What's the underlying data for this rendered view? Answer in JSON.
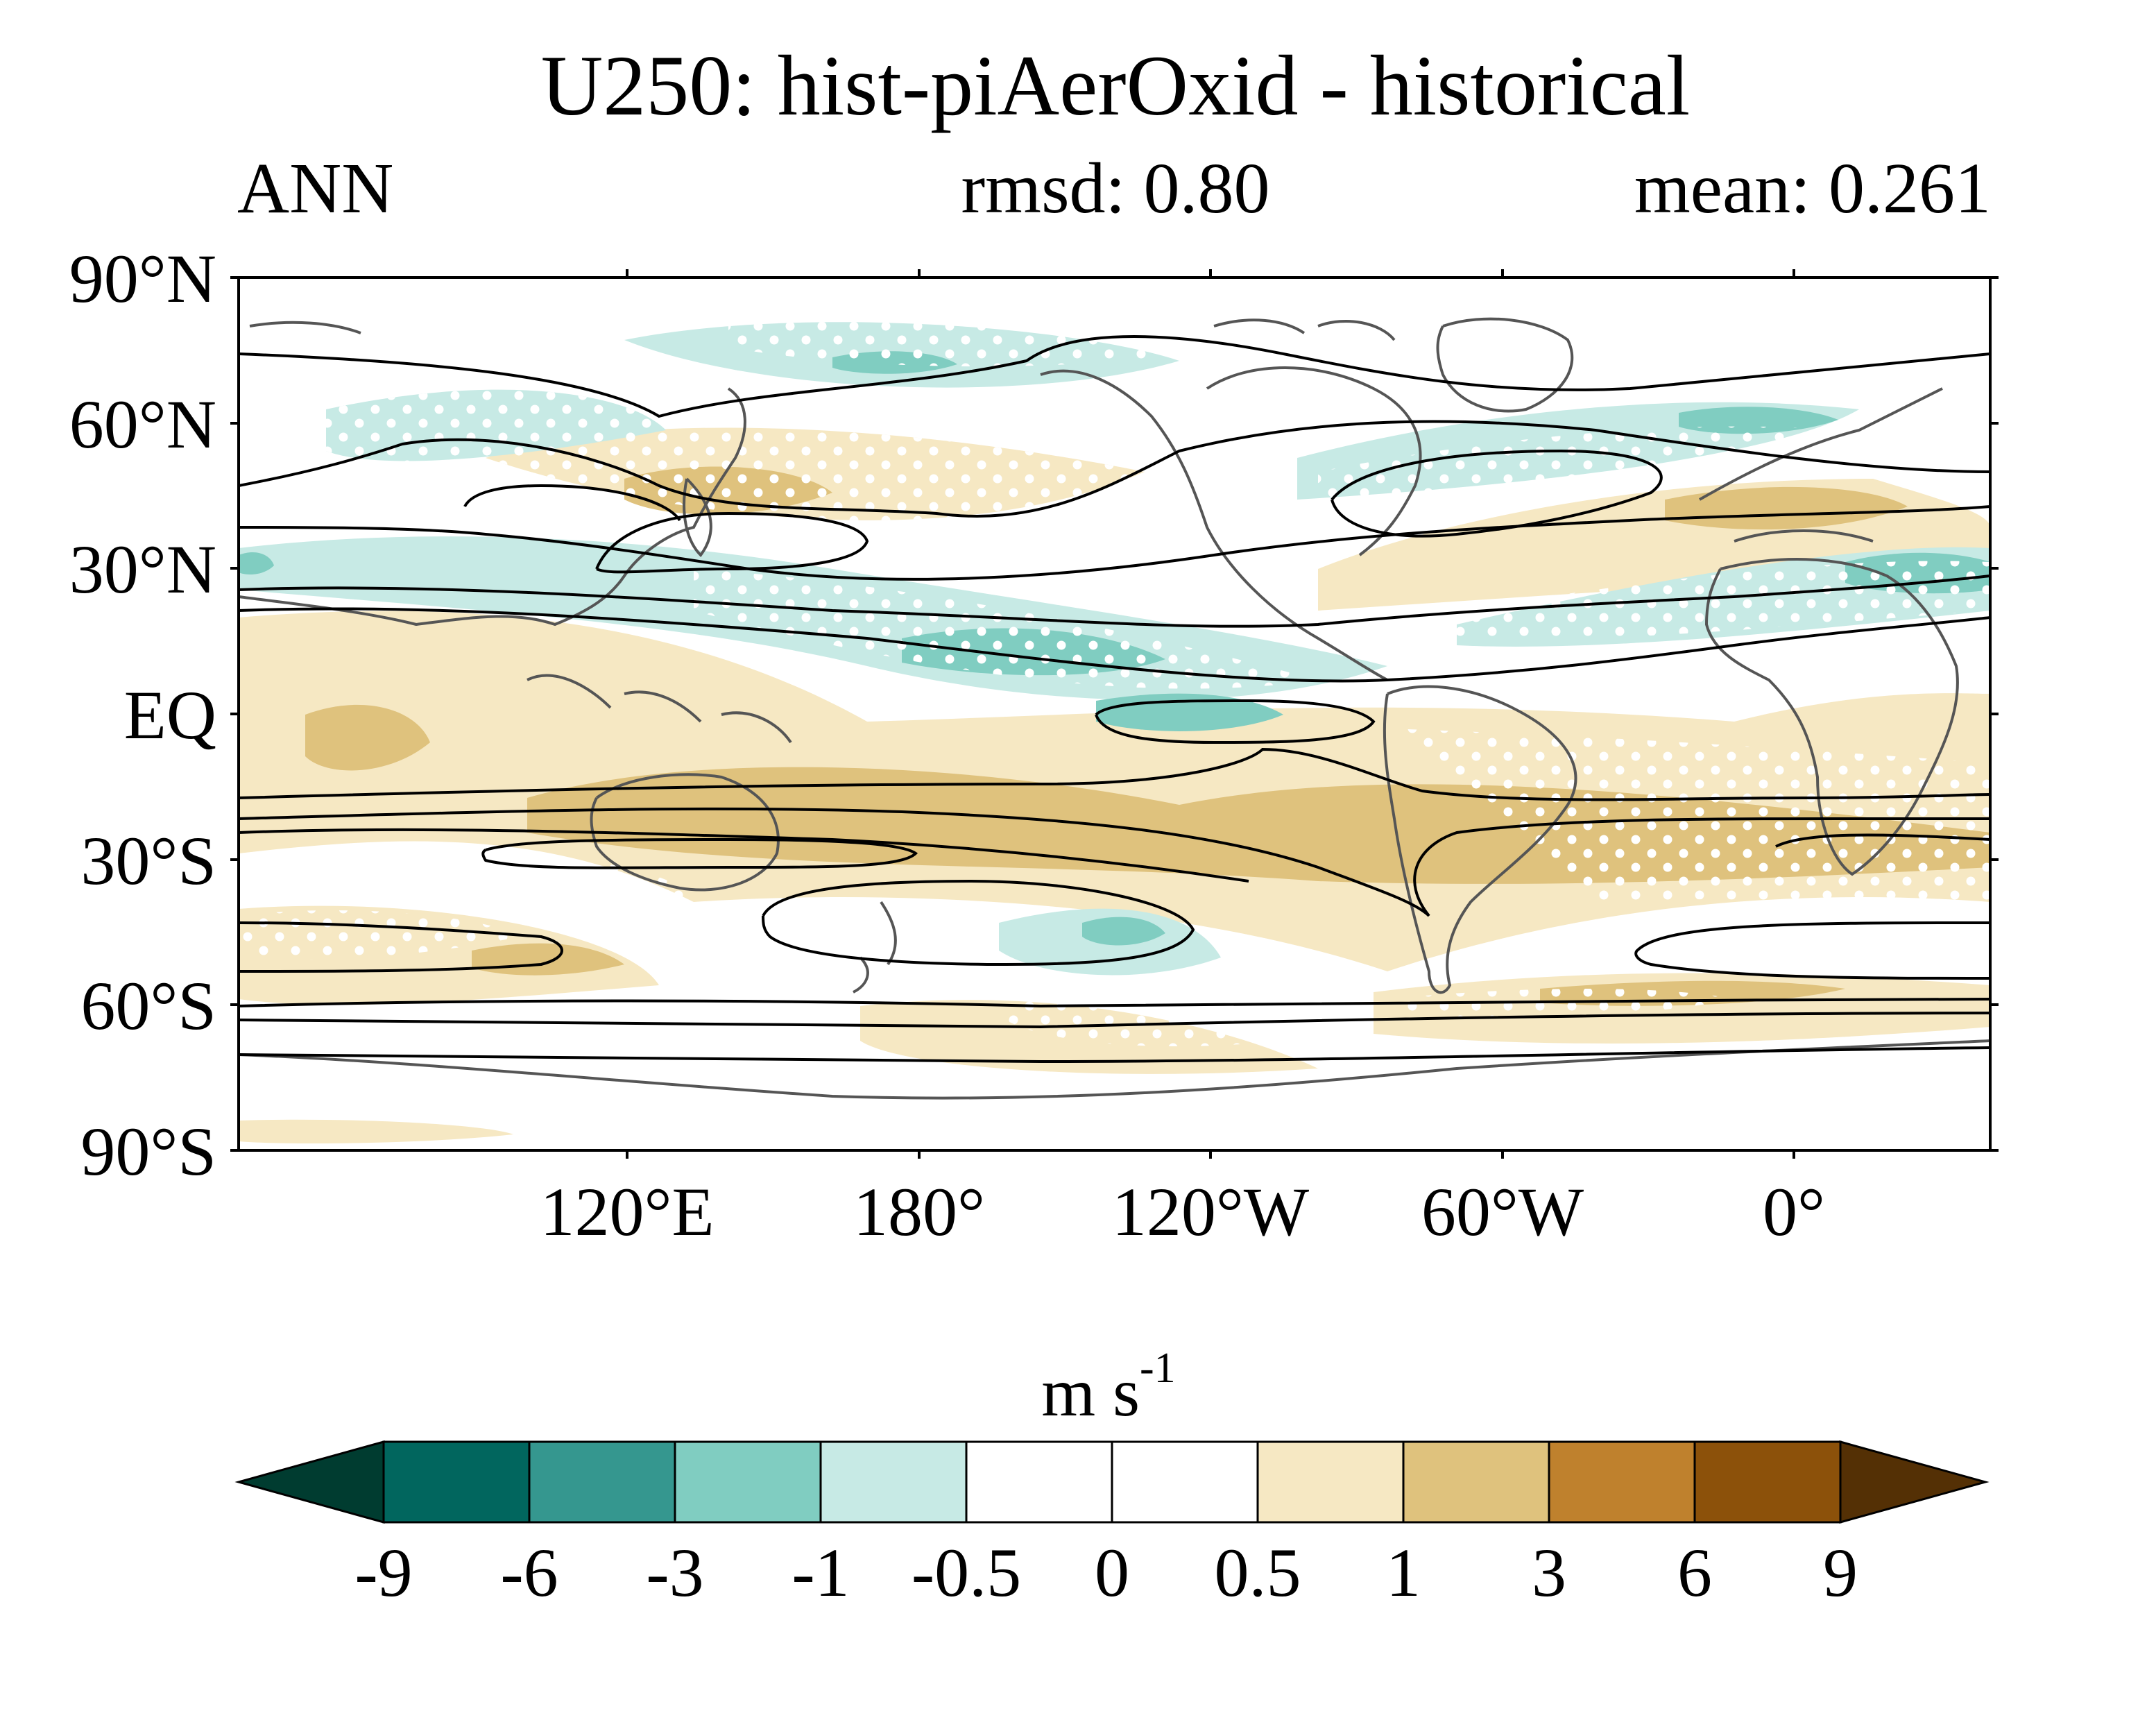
{
  "figure": {
    "title": "U250: hist-piAerOxid - historical",
    "left_label": "ANN",
    "center_label": "rmsd: 0.80",
    "right_label": "mean: 0.261"
  },
  "map": {
    "lat_labels": [
      "90°N",
      "60°N",
      "30°N",
      "EQ",
      "30°S",
      "60°S",
      "90°S"
    ],
    "lon_labels": [
      "120°E",
      "180°",
      "120°W",
      "60°W",
      "0°"
    ]
  },
  "colorbar": {
    "units_main": "m s",
    "units_sup": "-1",
    "tick_labels": [
      "-9",
      "-6",
      "-3",
      "-1",
      "-0.5",
      "0",
      "0.5",
      "1",
      "3",
      "6",
      "9"
    ],
    "under_color": "#003c30",
    "over_color": "#543005",
    "colors": [
      "#01665e",
      "#35978f",
      "#80cdc1",
      "#c7eae5",
      "#ffffff",
      "#ffffff",
      "#f6e8c3",
      "#dfc27d",
      "#bf812d",
      "#8c510a"
    ]
  }
}
